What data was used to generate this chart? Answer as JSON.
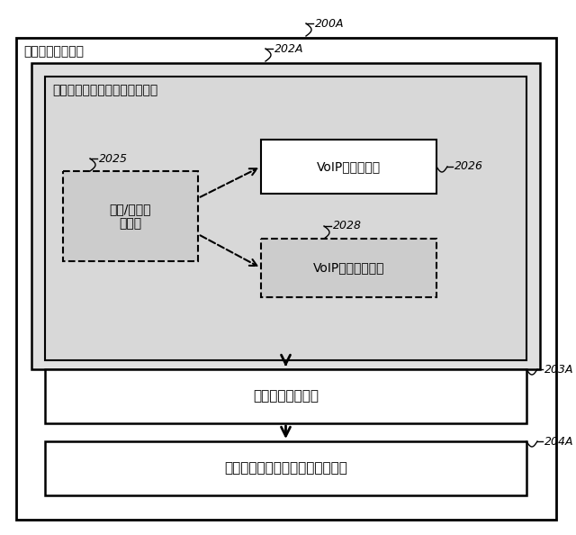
{
  "outer_box_label": "オーディオ分類器",
  "outer_box_ref": "200A",
  "mid_box_ref": "202A",
  "content_box_label": "オーディオ・コンテンツ分類器",
  "speech_noise_label": "発話/ノイズ\n分類器",
  "speech_noise_ref": "2025",
  "voip_speech_label": "VoIP発話分類器",
  "voip_speech_ref": "2026",
  "voip_noise_label": "VoIPノイズ分類器",
  "voip_noise_ref": "2028",
  "smoothing_label": "型平滑化ユニット",
  "smoothing_ref": "203A",
  "context_label": "オーディオ・コンテキスト分類器",
  "context_ref": "204A",
  "fig_w": 6.4,
  "fig_h": 5.94,
  "dpi": 100
}
